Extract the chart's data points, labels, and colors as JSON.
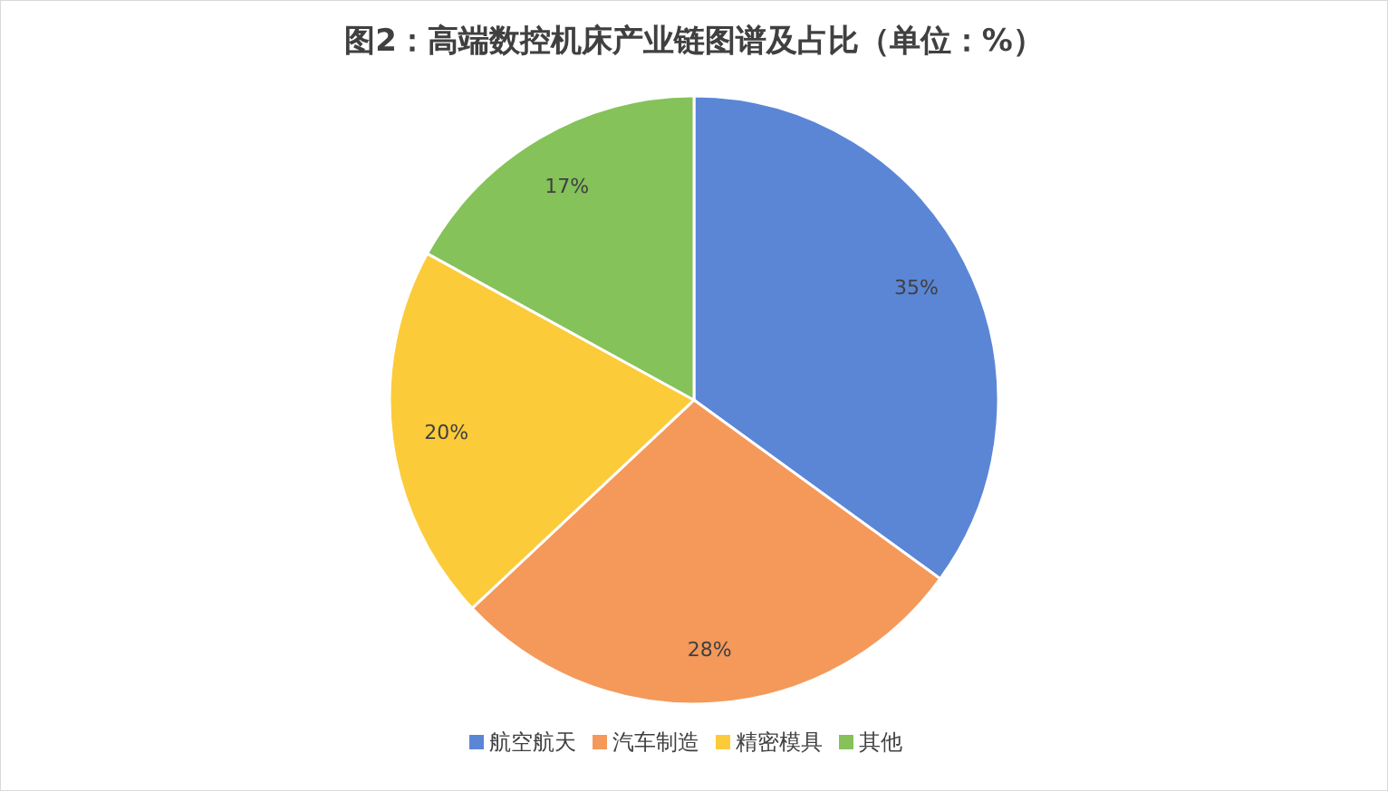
{
  "chart_data": {
    "type": "pie",
    "title": "图2：高端数控机床产业链图谱及占比（单位：%）",
    "categories": [
      "航空航天",
      "汽车制造",
      "精密模具",
      "其他"
    ],
    "values": [
      35,
      28,
      20,
      17
    ],
    "colors": [
      "#5b86d6",
      "#f4995a",
      "#fccb3a",
      "#85c25a"
    ],
    "value_labels": [
      "35%",
      "28%",
      "20%",
      "17%"
    ],
    "legend": "bottom"
  }
}
